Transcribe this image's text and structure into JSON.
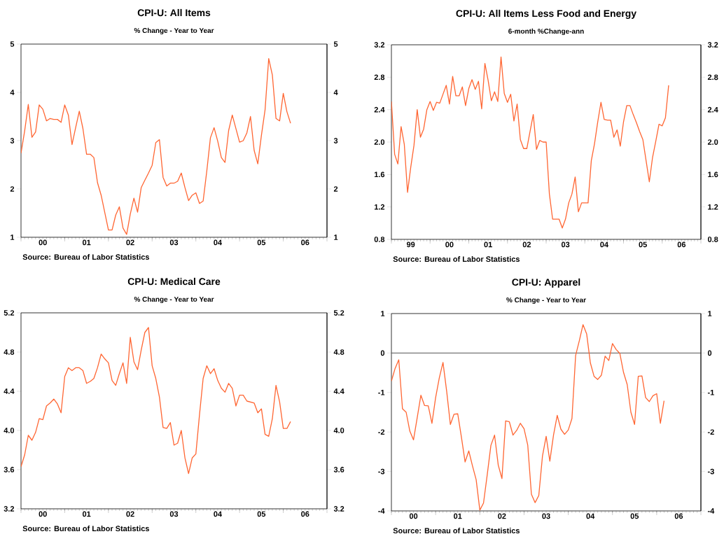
{
  "chart_data": [
    {
      "type": "line",
      "title": "CPI-U: All Items",
      "subtitle": "% Change - Year to Year",
      "color": "#ff6633",
      "x": [
        "2000-01",
        "2000-02",
        "2000-03",
        "2000-04",
        "2000-05",
        "2000-06",
        "2000-07",
        "2000-08",
        "2000-09",
        "2000-10",
        "2000-11",
        "2000-12",
        "2001-01",
        "2001-02",
        "2001-03",
        "2001-04",
        "2001-05",
        "2001-06",
        "2001-07",
        "2001-08",
        "2001-09",
        "2001-10",
        "2001-11",
        "2001-12",
        "2002-01",
        "2002-02",
        "2002-03",
        "2002-04",
        "2002-05",
        "2002-06",
        "2002-07",
        "2002-08",
        "2002-09",
        "2002-10",
        "2002-11",
        "2002-12",
        "2003-01",
        "2003-02",
        "2003-03",
        "2003-04",
        "2003-05",
        "2003-06",
        "2003-07",
        "2003-08",
        "2003-09",
        "2003-10",
        "2003-11",
        "2003-12",
        "2004-01",
        "2004-02",
        "2004-03",
        "2004-04",
        "2004-05",
        "2004-06",
        "2004-07",
        "2004-08",
        "2004-09",
        "2004-10",
        "2004-11",
        "2004-12",
        "2005-01",
        "2005-02",
        "2005-03",
        "2005-04",
        "2005-05",
        "2005-06",
        "2005-07",
        "2005-08",
        "2005-09",
        "2005-10",
        "2005-11",
        "2005-12",
        "2006-01",
        "2006-02",
        "2006-03"
      ],
      "values": [
        2.74,
        3.2,
        3.75,
        3.07,
        3.18,
        3.74,
        3.65,
        3.41,
        3.46,
        3.44,
        3.44,
        3.38,
        3.74,
        3.53,
        2.92,
        3.27,
        3.61,
        3.25,
        2.72,
        2.72,
        2.65,
        2.13,
        1.87,
        1.51,
        1.15,
        1.15,
        1.46,
        1.63,
        1.19,
        1.06,
        1.48,
        1.81,
        1.52,
        2.03,
        2.18,
        2.33,
        2.49,
        2.96,
        3.02,
        2.24,
        2.06,
        2.12,
        2.12,
        2.16,
        2.33,
        2.03,
        1.76,
        1.87,
        1.92,
        1.7,
        1.75,
        2.37,
        3.06,
        3.27,
        2.99,
        2.65,
        2.55,
        3.21,
        3.53,
        3.25,
        2.97,
        3.0,
        3.16,
        3.5,
        2.8,
        2.52,
        3.11,
        3.64,
        4.7,
        4.36,
        3.46,
        3.41,
        3.98,
        3.6,
        3.36
      ],
      "xlim": [
        "2000-01",
        "2007-01"
      ],
      "xticks": [
        {
          "value": "2000-01",
          "label": null
        },
        {
          "value": "2000-07",
          "label": "00"
        },
        {
          "value": "2001-01",
          "label": null
        },
        {
          "value": "2001-07",
          "label": "01"
        },
        {
          "value": "2002-01",
          "label": null
        },
        {
          "value": "2002-07",
          "label": "02"
        },
        {
          "value": "2003-01",
          "label": null
        },
        {
          "value": "2003-07",
          "label": "03"
        },
        {
          "value": "2004-01",
          "label": null
        },
        {
          "value": "2004-07",
          "label": "04"
        },
        {
          "value": "2005-01",
          "label": null
        },
        {
          "value": "2005-07",
          "label": "05"
        },
        {
          "value": "2006-01",
          "label": null
        },
        {
          "value": "2006-07",
          "label": "06"
        },
        {
          "value": "2007-01",
          "label": null
        }
      ],
      "ylim": [
        1,
        5
      ],
      "yticks": [
        1,
        2,
        3,
        4,
        5
      ],
      "y2lim": [
        1,
        5
      ],
      "y2ticks": [
        1,
        2,
        3,
        4,
        5
      ],
      "annotations": [
        "Source:  Bureau of Labor Statistics"
      ]
    },
    {
      "type": "line",
      "title": "CPI-U: All Items Less Food and Energy",
      "subtitle": "6-month %Change-ann",
      "color": "#ff6633",
      "x": [
        "1999-01",
        "1999-02",
        "1999-03",
        "1999-04",
        "1999-05",
        "1999-06",
        "1999-07",
        "1999-08",
        "1999-09",
        "1999-10",
        "1999-11",
        "1999-12",
        "2000-01",
        "2000-02",
        "2000-03",
        "2000-04",
        "2000-05",
        "2000-06",
        "2000-07",
        "2000-08",
        "2000-09",
        "2000-10",
        "2000-11",
        "2000-12",
        "2001-01",
        "2001-02",
        "2001-03",
        "2001-04",
        "2001-05",
        "2001-06",
        "2001-07",
        "2001-08",
        "2001-09",
        "2001-10",
        "2001-11",
        "2001-12",
        "2002-01",
        "2002-02",
        "2002-03",
        "2002-04",
        "2002-05",
        "2002-06",
        "2002-07",
        "2002-08",
        "2002-09",
        "2002-10",
        "2002-11",
        "2002-12",
        "2003-01",
        "2003-02",
        "2003-03",
        "2003-04",
        "2003-05",
        "2003-06",
        "2003-07",
        "2003-08",
        "2003-09",
        "2003-10",
        "2003-11",
        "2003-12",
        "2004-01",
        "2004-02",
        "2004-03",
        "2004-04",
        "2004-05",
        "2004-06",
        "2004-07",
        "2004-08",
        "2004-09",
        "2004-10",
        "2004-11",
        "2004-12",
        "2005-01",
        "2005-02",
        "2005-03",
        "2005-04",
        "2005-05",
        "2005-06",
        "2005-07",
        "2005-08",
        "2005-09",
        "2005-10",
        "2005-11",
        "2005-12",
        "2006-01",
        "2006-02",
        "2006-03"
      ],
      "values": [
        2.5,
        1.85,
        1.73,
        2.19,
        1.97,
        1.38,
        1.69,
        1.96,
        2.4,
        2.06,
        2.16,
        2.4,
        2.5,
        2.39,
        2.49,
        2.48,
        2.59,
        2.7,
        2.47,
        2.81,
        2.57,
        2.57,
        2.68,
        2.45,
        2.66,
        2.77,
        2.65,
        2.75,
        2.41,
        2.97,
        2.76,
        2.51,
        2.62,
        2.5,
        3.05,
        2.6,
        2.49,
        2.59,
        2.26,
        2.47,
        2.03,
        1.92,
        1.92,
        2.13,
        2.34,
        1.91,
        2.02,
        2.0,
        2.0,
        1.36,
        1.05,
        1.05,
        1.05,
        0.94,
        1.05,
        1.25,
        1.36,
        1.57,
        1.14,
        1.25,
        1.25,
        1.25,
        1.77,
        1.98,
        2.25,
        2.49,
        2.28,
        2.27,
        2.27,
        2.06,
        2.15,
        1.95,
        2.25,
        2.45,
        2.45,
        2.34,
        2.24,
        2.13,
        2.03,
        1.77,
        1.51,
        1.81,
        2.01,
        2.22,
        2.2,
        2.3,
        2.7
      ],
      "xlim": [
        "1999-01",
        "2007-01"
      ],
      "xticks": [
        {
          "value": "1999-01",
          "label": null
        },
        {
          "value": "1999-07",
          "label": "99"
        },
        {
          "value": "2000-01",
          "label": null
        },
        {
          "value": "2000-07",
          "label": "00"
        },
        {
          "value": "2001-01",
          "label": null
        },
        {
          "value": "2001-07",
          "label": "01"
        },
        {
          "value": "2002-01",
          "label": null
        },
        {
          "value": "2002-07",
          "label": "02"
        },
        {
          "value": "2003-01",
          "label": null
        },
        {
          "value": "2003-07",
          "label": "03"
        },
        {
          "value": "2004-01",
          "label": null
        },
        {
          "value": "2004-07",
          "label": "04"
        },
        {
          "value": "2005-01",
          "label": null
        },
        {
          "value": "2005-07",
          "label": "05"
        },
        {
          "value": "2006-01",
          "label": null
        },
        {
          "value": "2006-07",
          "label": "06"
        },
        {
          "value": "2007-01",
          "label": null
        }
      ],
      "ylim": [
        0.8,
        3.2
      ],
      "yticks": [
        0.8,
        1.2,
        1.6,
        {
          "value": 2,
          "label": "2.0"
        },
        2.4,
        2.8,
        3.2
      ],
      "y2lim": [
        0.8,
        3.2
      ],
      "y2ticks": [
        0.8,
        1.2,
        1.6,
        {
          "value": 2,
          "label": "2.0"
        },
        2.4,
        2.8,
        3.2
      ],
      "annotations": [
        "Source:  Bureau of Labor Statistics"
      ]
    },
    {
      "type": "line",
      "title": "CPI-U: Medical Care",
      "subtitle": "% Change - Year to Year",
      "color": "#ff6633",
      "x": [
        "2000-01",
        "2000-02",
        "2000-03",
        "2000-04",
        "2000-05",
        "2000-06",
        "2000-07",
        "2000-08",
        "2000-09",
        "2000-10",
        "2000-11",
        "2000-12",
        "2001-01",
        "2001-02",
        "2001-03",
        "2001-04",
        "2001-05",
        "2001-06",
        "2001-07",
        "2001-08",
        "2001-09",
        "2001-10",
        "2001-11",
        "2001-12",
        "2002-01",
        "2002-02",
        "2002-03",
        "2002-04",
        "2002-05",
        "2002-06",
        "2002-07",
        "2002-08",
        "2002-09",
        "2002-10",
        "2002-11",
        "2002-12",
        "2003-01",
        "2003-02",
        "2003-03",
        "2003-04",
        "2003-05",
        "2003-06",
        "2003-07",
        "2003-08",
        "2003-09",
        "2003-10",
        "2003-11",
        "2003-12",
        "2004-01",
        "2004-02",
        "2004-03",
        "2004-04",
        "2004-05",
        "2004-06",
        "2004-07",
        "2004-08",
        "2004-09",
        "2004-10",
        "2004-11",
        "2004-12",
        "2005-01",
        "2005-02",
        "2005-03",
        "2005-04",
        "2005-05",
        "2005-06",
        "2005-07",
        "2005-08",
        "2005-09",
        "2005-10",
        "2005-11",
        "2005-12",
        "2006-01",
        "2006-02",
        "2006-03"
      ],
      "values": [
        3.63,
        3.75,
        3.95,
        3.9,
        3.98,
        4.12,
        4.11,
        4.25,
        4.28,
        4.32,
        4.27,
        4.18,
        4.55,
        4.64,
        4.61,
        4.64,
        4.64,
        4.61,
        4.48,
        4.5,
        4.53,
        4.64,
        4.78,
        4.73,
        4.69,
        4.51,
        4.46,
        4.58,
        4.69,
        4.48,
        4.95,
        4.7,
        4.62,
        4.82,
        5.0,
        5.05,
        4.66,
        4.53,
        4.34,
        4.03,
        4.02,
        4.08,
        3.85,
        3.87,
        4.0,
        3.72,
        3.56,
        3.72,
        3.76,
        4.16,
        4.53,
        4.66,
        4.58,
        4.63,
        4.51,
        4.43,
        4.39,
        4.48,
        4.43,
        4.25,
        4.36,
        4.36,
        4.3,
        4.29,
        4.28,
        4.18,
        4.22,
        3.96,
        3.94,
        4.12,
        4.46,
        4.29,
        4.02,
        4.02,
        4.09
      ],
      "xlim": [
        "2000-01",
        "2007-01"
      ],
      "xticks": [
        {
          "value": "2000-01",
          "label": null
        },
        {
          "value": "2000-07",
          "label": "00"
        },
        {
          "value": "2001-01",
          "label": null
        },
        {
          "value": "2001-07",
          "label": "01"
        },
        {
          "value": "2002-01",
          "label": null
        },
        {
          "value": "2002-07",
          "label": "02"
        },
        {
          "value": "2003-01",
          "label": null
        },
        {
          "value": "2003-07",
          "label": "03"
        },
        {
          "value": "2004-01",
          "label": null
        },
        {
          "value": "2004-07",
          "label": "04"
        },
        {
          "value": "2005-01",
          "label": null
        },
        {
          "value": "2005-07",
          "label": "05"
        },
        {
          "value": "2006-01",
          "label": null
        },
        {
          "value": "2006-07",
          "label": "06"
        },
        {
          "value": "2007-01",
          "label": null
        }
      ],
      "ylim": [
        3.2,
        5.2
      ],
      "yticks": [
        3.2,
        3.6,
        {
          "value": 4,
          "label": "4.0"
        },
        4.4,
        4.8,
        5.2
      ],
      "y2lim": [
        3.2,
        5.2
      ],
      "y2ticks": [
        3.2,
        3.6,
        {
          "value": 4,
          "label": "4.0"
        },
        4.4,
        4.8,
        5.2
      ],
      "annotations": [
        "Source:  Bureau of Labor Statistics"
      ]
    },
    {
      "type": "line",
      "title": "CPI-U: Apparel",
      "subtitle": "% Change - Year to Year",
      "color": "#ff6633",
      "x": [
        "2000-01",
        "2000-02",
        "2000-03",
        "2000-04",
        "2000-05",
        "2000-06",
        "2000-07",
        "2000-08",
        "2000-09",
        "2000-10",
        "2000-11",
        "2000-12",
        "2001-01",
        "2001-02",
        "2001-03",
        "2001-04",
        "2001-05",
        "2001-06",
        "2001-07",
        "2001-08",
        "2001-09",
        "2001-10",
        "2001-11",
        "2001-12",
        "2002-01",
        "2002-02",
        "2002-03",
        "2002-04",
        "2002-05",
        "2002-06",
        "2002-07",
        "2002-08",
        "2002-09",
        "2002-10",
        "2002-11",
        "2002-12",
        "2003-01",
        "2003-02",
        "2003-03",
        "2003-04",
        "2003-05",
        "2003-06",
        "2003-07",
        "2003-08",
        "2003-09",
        "2003-10",
        "2003-11",
        "2003-12",
        "2004-01",
        "2004-02",
        "2004-03",
        "2004-04",
        "2004-05",
        "2004-06",
        "2004-07",
        "2004-08",
        "2004-09",
        "2004-10",
        "2004-11",
        "2004-12",
        "2005-01",
        "2005-02",
        "2005-03",
        "2005-04",
        "2005-05",
        "2005-06",
        "2005-07",
        "2005-08",
        "2005-09",
        "2005-10",
        "2005-11",
        "2005-12",
        "2006-01",
        "2006-02",
        "2006-03"
      ],
      "values": [
        -0.71,
        -0.39,
        -0.17,
        -1.41,
        -1.5,
        -1.98,
        -2.2,
        -1.64,
        -1.07,
        -1.33,
        -1.34,
        -1.78,
        -1.13,
        -0.63,
        -0.24,
        -0.97,
        -1.81,
        -1.55,
        -1.54,
        -2.13,
        -2.76,
        -2.48,
        -2.86,
        -3.21,
        -3.98,
        -3.8,
        -3.09,
        -2.34,
        -2.08,
        -2.84,
        -3.18,
        -1.72,
        -1.74,
        -2.08,
        -1.96,
        -1.78,
        -1.92,
        -2.33,
        -3.58,
        -3.79,
        -3.61,
        -2.61,
        -2.11,
        -2.74,
        -2.08,
        -1.58,
        -1.93,
        -2.06,
        -1.95,
        -1.66,
        -0.06,
        0.31,
        0.72,
        0.48,
        -0.25,
        -0.59,
        -0.67,
        -0.56,
        -0.08,
        -0.19,
        0.24,
        0.09,
        -0.01,
        -0.49,
        -0.8,
        -1.5,
        -1.81,
        -0.59,
        -0.58,
        -1.13,
        -1.23,
        -1.08,
        -1.03,
        -1.78,
        -1.21
      ],
      "xlim": [
        "2000-01",
        "2007-01"
      ],
      "xticks": [
        {
          "value": "2000-01",
          "label": null
        },
        {
          "value": "2000-07",
          "label": "00"
        },
        {
          "value": "2001-01",
          "label": null
        },
        {
          "value": "2001-07",
          "label": "01"
        },
        {
          "value": "2002-01",
          "label": null
        },
        {
          "value": "2002-07",
          "label": "02"
        },
        {
          "value": "2003-01",
          "label": null
        },
        {
          "value": "2003-07",
          "label": "03"
        },
        {
          "value": "2004-01",
          "label": null
        },
        {
          "value": "2004-07",
          "label": "04"
        },
        {
          "value": "2005-01",
          "label": null
        },
        {
          "value": "2005-07",
          "label": "05"
        },
        {
          "value": "2006-01",
          "label": null
        },
        {
          "value": "2006-07",
          "label": "06"
        },
        {
          "value": "2007-01",
          "label": null
        }
      ],
      "ylim": [
        -4,
        1
      ],
      "yticks": [
        -4,
        -3,
        -2,
        -1,
        0,
        1
      ],
      "y2lim": [
        -4,
        1
      ],
      "y2ticks": [
        -4,
        -3,
        -2,
        -1,
        0,
        1
      ],
      "ref_lines": [
        {
          "axis": "y",
          "value": 0,
          "color": "#555555"
        }
      ],
      "annotations": [
        "Source:  Bureau of Labor Statistics"
      ]
    }
  ]
}
